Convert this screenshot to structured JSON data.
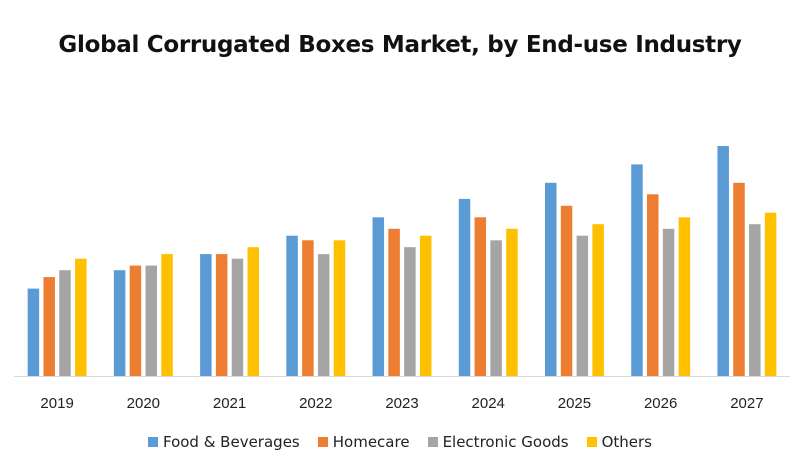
{
  "chart_data": {
    "type": "bar",
    "title": "Global Corrugated Boxes Market, by End-use Industry",
    "xlabel": "",
    "ylabel": "",
    "ylim": [
      0,
      100
    ],
    "grid": false,
    "legend_position": "bottom",
    "categories": [
      "2019",
      "2020",
      "2021",
      "2022",
      "2023",
      "2024",
      "2025",
      "2026",
      "2027"
    ],
    "series": [
      {
        "name": "Food & Beverages",
        "color": "#5B9BD5",
        "values": [
          38,
          46,
          53,
          61,
          69,
          77,
          84,
          92,
          100
        ]
      },
      {
        "name": "Homecare",
        "color": "#ED7D31",
        "values": [
          43,
          48,
          53,
          59,
          64,
          69,
          74,
          79,
          84
        ]
      },
      {
        "name": "Electronic Goods",
        "color": "#A5A5A5",
        "values": [
          46,
          48,
          51,
          53,
          56,
          59,
          61,
          64,
          66
        ]
      },
      {
        "name": "Others",
        "color": "#FFC000",
        "values": [
          51,
          53,
          56,
          59,
          61,
          64,
          66,
          69,
          71
        ]
      }
    ]
  }
}
